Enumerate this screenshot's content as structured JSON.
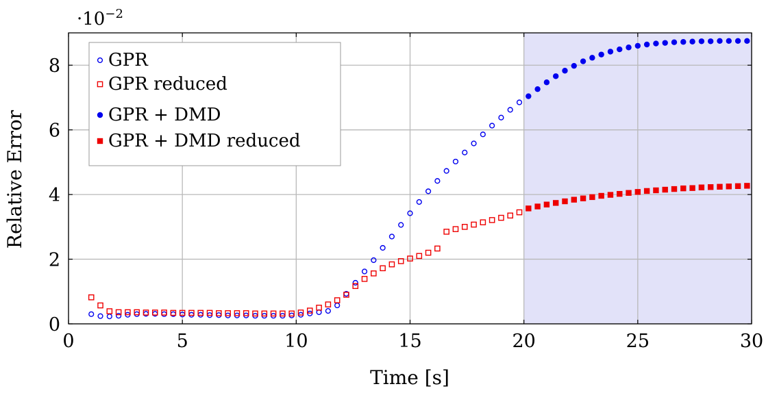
{
  "chart_data": {
    "type": "scatter",
    "title": "",
    "xlabel": "Time [s]",
    "ylabel": "Relative Error",
    "y_scale_label": "·10",
    "y_scale_exponent": "−2",
    "xlim": [
      0,
      30
    ],
    "ylim": [
      0,
      9
    ],
    "x_ticks": [
      0,
      5,
      10,
      15,
      20,
      25,
      30
    ],
    "y_ticks": [
      0,
      2,
      4,
      6,
      8
    ],
    "grid": true,
    "legend_position": "top-left",
    "shaded_region": {
      "x_start": 20,
      "x_end": 30,
      "color": "#e2e2f9"
    },
    "series": [
      {
        "name": "GPR",
        "marker": "circle-open",
        "color": "#0000ee",
        "points": [
          [
            1.0,
            0.3
          ],
          [
            1.4,
            0.24
          ],
          [
            1.8,
            0.23
          ],
          [
            2.2,
            0.25
          ],
          [
            2.6,
            0.28
          ],
          [
            3.0,
            0.3
          ],
          [
            3.4,
            0.31
          ],
          [
            3.8,
            0.31
          ],
          [
            4.2,
            0.3
          ],
          [
            4.6,
            0.3
          ],
          [
            5.0,
            0.29
          ],
          [
            5.4,
            0.28
          ],
          [
            5.8,
            0.28
          ],
          [
            6.2,
            0.27
          ],
          [
            6.6,
            0.27
          ],
          [
            7.0,
            0.26
          ],
          [
            7.4,
            0.26
          ],
          [
            7.8,
            0.26
          ],
          [
            8.2,
            0.25
          ],
          [
            8.6,
            0.25
          ],
          [
            9.0,
            0.25
          ],
          [
            9.4,
            0.25
          ],
          [
            9.8,
            0.26
          ],
          [
            10.2,
            0.28
          ],
          [
            10.6,
            0.32
          ],
          [
            11.0,
            0.36
          ],
          [
            11.4,
            0.4
          ],
          [
            11.8,
            0.57
          ],
          [
            12.2,
            0.93
          ],
          [
            12.6,
            1.27
          ],
          [
            13.0,
            1.62
          ],
          [
            13.4,
            1.97
          ],
          [
            13.8,
            2.35
          ],
          [
            14.2,
            2.7
          ],
          [
            14.6,
            3.06
          ],
          [
            15.0,
            3.42
          ],
          [
            15.4,
            3.77
          ],
          [
            15.8,
            4.1
          ],
          [
            16.2,
            4.42
          ],
          [
            16.6,
            4.73
          ],
          [
            17.0,
            5.02
          ],
          [
            17.4,
            5.3
          ],
          [
            17.8,
            5.58
          ],
          [
            18.2,
            5.86
          ],
          [
            18.6,
            6.13
          ],
          [
            19.0,
            6.38
          ],
          [
            19.4,
            6.62
          ],
          [
            19.8,
            6.85
          ]
        ]
      },
      {
        "name": "GPR reduced",
        "marker": "square-open",
        "color": "#ee0000",
        "points": [
          [
            1.0,
            0.82
          ],
          [
            1.4,
            0.57
          ],
          [
            1.8,
            0.39
          ],
          [
            2.2,
            0.36
          ],
          [
            2.6,
            0.36
          ],
          [
            3.0,
            0.36
          ],
          [
            3.4,
            0.35
          ],
          [
            3.8,
            0.35
          ],
          [
            4.2,
            0.35
          ],
          [
            4.6,
            0.34
          ],
          [
            5.0,
            0.34
          ],
          [
            5.4,
            0.34
          ],
          [
            5.8,
            0.34
          ],
          [
            6.2,
            0.34
          ],
          [
            6.6,
            0.33
          ],
          [
            7.0,
            0.33
          ],
          [
            7.4,
            0.33
          ],
          [
            7.8,
            0.33
          ],
          [
            8.2,
            0.32
          ],
          [
            8.6,
            0.32
          ],
          [
            9.0,
            0.32
          ],
          [
            9.4,
            0.32
          ],
          [
            9.8,
            0.32
          ],
          [
            10.2,
            0.35
          ],
          [
            10.6,
            0.41
          ],
          [
            11.0,
            0.5
          ],
          [
            11.4,
            0.6
          ],
          [
            11.8,
            0.73
          ],
          [
            12.2,
            0.9
          ],
          [
            12.6,
            1.17
          ],
          [
            13.0,
            1.39
          ],
          [
            13.4,
            1.56
          ],
          [
            13.8,
            1.72
          ],
          [
            14.2,
            1.84
          ],
          [
            14.6,
            1.94
          ],
          [
            15.0,
            2.02
          ],
          [
            15.4,
            2.1
          ],
          [
            15.8,
            2.2
          ],
          [
            16.2,
            2.33
          ],
          [
            16.6,
            2.85
          ],
          [
            17.0,
            2.93
          ],
          [
            17.4,
            3.0
          ],
          [
            17.8,
            3.07
          ],
          [
            18.2,
            3.14
          ],
          [
            18.6,
            3.21
          ],
          [
            19.0,
            3.28
          ],
          [
            19.4,
            3.35
          ],
          [
            19.8,
            3.45
          ]
        ]
      },
      {
        "name": "GPR + DMD",
        "marker": "circle-filled",
        "color": "#0000ee",
        "points": [
          [
            20.2,
            7.04
          ],
          [
            20.6,
            7.26
          ],
          [
            21.0,
            7.47
          ],
          [
            21.4,
            7.66
          ],
          [
            21.8,
            7.83
          ],
          [
            22.2,
            7.98
          ],
          [
            22.6,
            8.12
          ],
          [
            23.0,
            8.23
          ],
          [
            23.4,
            8.33
          ],
          [
            23.8,
            8.42
          ],
          [
            24.2,
            8.49
          ],
          [
            24.6,
            8.55
          ],
          [
            25.0,
            8.6
          ],
          [
            25.4,
            8.64
          ],
          [
            25.8,
            8.67
          ],
          [
            26.2,
            8.69
          ],
          [
            26.6,
            8.71
          ],
          [
            27.0,
            8.72
          ],
          [
            27.4,
            8.73
          ],
          [
            27.8,
            8.74
          ],
          [
            28.2,
            8.74
          ],
          [
            28.6,
            8.75
          ],
          [
            29.0,
            8.75
          ],
          [
            29.4,
            8.75
          ],
          [
            29.8,
            8.75
          ]
        ]
      },
      {
        "name": "GPR + DMD reduced",
        "marker": "square-filled",
        "color": "#ee0000",
        "points": [
          [
            20.2,
            3.57
          ],
          [
            20.6,
            3.63
          ],
          [
            21.0,
            3.69
          ],
          [
            21.4,
            3.74
          ],
          [
            21.8,
            3.79
          ],
          [
            22.2,
            3.84
          ],
          [
            22.6,
            3.88
          ],
          [
            23.0,
            3.92
          ],
          [
            23.4,
            3.96
          ],
          [
            23.8,
            3.99
          ],
          [
            24.2,
            4.02
          ],
          [
            24.6,
            4.05
          ],
          [
            25.0,
            4.08
          ],
          [
            25.4,
            4.11
          ],
          [
            25.8,
            4.13
          ],
          [
            26.2,
            4.15
          ],
          [
            26.6,
            4.17
          ],
          [
            27.0,
            4.19
          ],
          [
            27.4,
            4.2
          ],
          [
            27.8,
            4.22
          ],
          [
            28.2,
            4.23
          ],
          [
            28.6,
            4.24
          ],
          [
            29.0,
            4.25
          ],
          [
            29.4,
            4.26
          ],
          [
            29.8,
            4.27
          ]
        ]
      }
    ]
  }
}
